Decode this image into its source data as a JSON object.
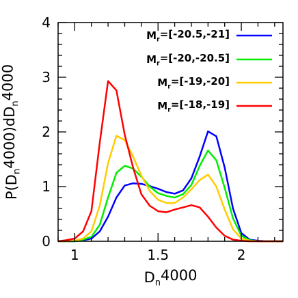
{
  "chart_data": {
    "type": "line",
    "xlabel": {
      "base": "D",
      "sub": "n",
      "rest": "4000"
    },
    "ylabel": {
      "parts": [
        {
          "t": "P(D"
        },
        {
          "t": "n",
          "sub": true
        },
        {
          "t": "4000)dD"
        },
        {
          "t": "n",
          "sub": true
        },
        {
          "t": "4000"
        }
      ]
    },
    "xlim": [
      0.9,
      2.25
    ],
    "ylim": [
      0,
      4
    ],
    "xticks": {
      "labeled": [
        1,
        1.5,
        2
      ],
      "labels": [
        "1",
        "1.5",
        "2"
      ],
      "major_step": 0.5,
      "minor_step": 0.1
    },
    "yticks": {
      "labeled": [
        0,
        1,
        2,
        3,
        4
      ],
      "labels": [
        "0",
        "1",
        "2",
        "3",
        "4"
      ],
      "minor_step": 0.2
    },
    "grid": false,
    "legend_position": "top-right",
    "series": [
      {
        "label": {
          "base": "M",
          "sub": "r",
          "rest": "=[-20.5,-21]"
        },
        "color": "#0000ff",
        "x": [
          0.9,
          0.95,
          1.0,
          1.05,
          1.1,
          1.15,
          1.2,
          1.25,
          1.3,
          1.35,
          1.4,
          1.45,
          1.5,
          1.55,
          1.6,
          1.65,
          1.7,
          1.75,
          1.8,
          1.85,
          1.9,
          1.95,
          2.0,
          2.05,
          2.1,
          2.15,
          2.2,
          2.25
        ],
        "y": [
          0.0,
          0.0,
          0.0,
          0.02,
          0.05,
          0.18,
          0.45,
          0.8,
          1.02,
          1.06,
          1.05,
          1.01,
          0.96,
          0.9,
          0.87,
          0.93,
          1.15,
          1.55,
          2.01,
          1.92,
          1.35,
          0.6,
          0.15,
          0.03,
          0.01,
          0.0,
          0.0,
          0.0
        ]
      },
      {
        "label": {
          "base": "M",
          "sub": "r",
          "rest": "=[-20,-20.5]"
        },
        "color": "#00ee00",
        "x": [
          0.9,
          0.95,
          1.0,
          1.05,
          1.1,
          1.15,
          1.2,
          1.25,
          1.3,
          1.35,
          1.4,
          1.45,
          1.5,
          1.55,
          1.6,
          1.65,
          1.7,
          1.75,
          1.8,
          1.85,
          1.9,
          1.95,
          2.0,
          2.05,
          2.1,
          2.15,
          2.2,
          2.25
        ],
        "y": [
          0.0,
          0.0,
          0.0,
          0.03,
          0.08,
          0.3,
          0.8,
          1.25,
          1.38,
          1.33,
          1.18,
          1.0,
          0.88,
          0.83,
          0.8,
          0.86,
          1.03,
          1.38,
          1.66,
          1.48,
          0.98,
          0.42,
          0.1,
          0.02,
          0.0,
          0.0,
          0.0,
          0.0
        ]
      },
      {
        "label": {
          "base": "M",
          "sub": "r",
          "rest": "=[-19,-20]"
        },
        "color": "#ffcc00",
        "x": [
          0.9,
          0.95,
          1.0,
          1.05,
          1.1,
          1.15,
          1.2,
          1.25,
          1.3,
          1.35,
          1.4,
          1.45,
          1.5,
          1.55,
          1.6,
          1.65,
          1.7,
          1.75,
          1.8,
          1.85,
          1.9,
          1.95,
          2.0,
          2.05,
          2.1,
          2.15,
          2.2,
          2.25
        ],
        "y": [
          0.0,
          0.0,
          0.01,
          0.05,
          0.18,
          0.65,
          1.43,
          1.93,
          1.85,
          1.55,
          1.2,
          0.92,
          0.76,
          0.7,
          0.7,
          0.8,
          0.95,
          1.12,
          1.22,
          1.0,
          0.58,
          0.22,
          0.05,
          0.01,
          0.0,
          0.0,
          0.0,
          0.0
        ]
      },
      {
        "label": {
          "base": "M",
          "sub": "r",
          "rest": "=[-18,-19]"
        },
        "color": "#ff0000",
        "x": [
          0.9,
          0.95,
          1.0,
          1.05,
          1.1,
          1.15,
          1.2,
          1.25,
          1.3,
          1.35,
          1.4,
          1.45,
          1.5,
          1.55,
          1.6,
          1.65,
          1.7,
          1.75,
          1.8,
          1.85,
          1.9,
          1.95,
          2.0,
          2.05,
          2.1,
          2.15,
          2.2,
          2.25
        ],
        "y": [
          0.0,
          0.02,
          0.05,
          0.18,
          0.55,
          1.8,
          2.93,
          2.76,
          1.95,
          1.35,
          0.86,
          0.65,
          0.55,
          0.53,
          0.58,
          0.62,
          0.66,
          0.62,
          0.45,
          0.25,
          0.1,
          0.03,
          0.01,
          0.0,
          0.0,
          0.0,
          0.0,
          0.0
        ]
      }
    ]
  }
}
